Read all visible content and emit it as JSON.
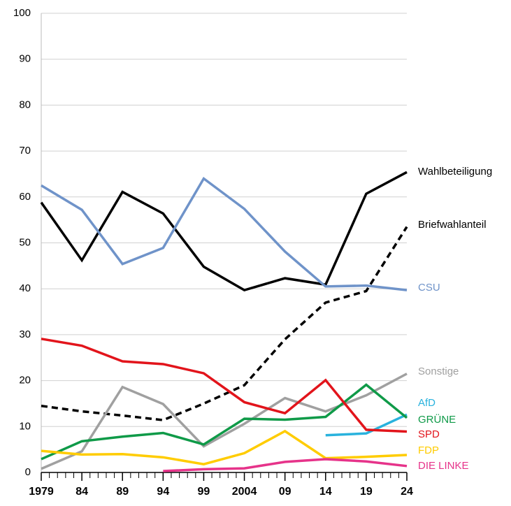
{
  "chart_data": {
    "type": "line",
    "x": [
      1979,
      1984,
      1989,
      1994,
      1999,
      2004,
      2009,
      2014,
      2019,
      2024
    ],
    "xlim": [
      1979,
      2024
    ],
    "xticks": [
      1979,
      {
        "value": 1984,
        "label": "84"
      },
      {
        "value": 1989,
        "label": "89"
      },
      {
        "value": 1994,
        "label": "94"
      },
      {
        "value": 1999,
        "label": "99"
      },
      2004,
      {
        "value": 2009,
        "label": "09"
      },
      {
        "value": 2014,
        "label": "14"
      },
      {
        "value": 2019,
        "label": "19"
      },
      {
        "value": 2024,
        "label": "24"
      }
    ],
    "minor_xticks": [
      1980,
      1981,
      1982,
      1983,
      1985,
      1986,
      1987,
      1988,
      1990,
      1991,
      1992,
      1993,
      1995,
      1996,
      1997,
      1998,
      2000,
      2001,
      2002,
      2003,
      2005,
      2006,
      2007,
      2008,
      2010,
      2011,
      2012,
      2013,
      2015,
      2016,
      2017,
      2018,
      2020,
      2021,
      2022,
      2023
    ],
    "ylim": [
      0,
      100
    ],
    "yticks": [
      0,
      10,
      20,
      30,
      40,
      50,
      60,
      70,
      80,
      90,
      100
    ],
    "grid": true,
    "series": [
      {
        "name": "Wahlbeteiligung",
        "color": "#000000",
        "values": [
          58.8,
          46.2,
          61.1,
          56.4,
          44.8,
          39.7,
          42.3,
          40.9,
          60.7,
          65.4
        ]
      },
      {
        "name": "Briefwahlanteil",
        "color": "#000000",
        "dashed": true,
        "values": [
          14.5,
          13.3,
          12.4,
          11.4,
          15.0,
          19.0,
          29.0,
          37.0,
          39.5,
          53.5
        ]
      },
      {
        "name": "CSU",
        "color": "#6f93c9",
        "values": [
          62.5,
          57.2,
          45.4,
          48.9,
          64.0,
          57.4,
          48.1,
          40.5,
          40.7,
          39.7
        ]
      },
      {
        "name": "Sonstige",
        "color": "#a0a0a0",
        "values": [
          0.8,
          4.6,
          18.6,
          14.9,
          5.7,
          10.6,
          16.2,
          13.3,
          16.8,
          21.5
        ]
      },
      {
        "name": "AfD",
        "color": "#29b2dd",
        "values": [
          null,
          null,
          null,
          null,
          null,
          null,
          null,
          8.1,
          8.5,
          12.6
        ]
      },
      {
        "name": "GRÜNE",
        "color": "#0f9a48",
        "values": [
          2.9,
          6.8,
          7.8,
          8.6,
          6.1,
          11.7,
          11.5,
          12.1,
          19.1,
          11.9
        ]
      },
      {
        "name": "SPD",
        "color": "#e2141b",
        "values": [
          29.1,
          27.6,
          24.2,
          23.6,
          21.6,
          15.3,
          12.9,
          20.1,
          9.3,
          8.9
        ]
      },
      {
        "name": "FDP",
        "color": "#ffcc00",
        "values": [
          4.7,
          3.9,
          4.0,
          3.3,
          1.8,
          4.2,
          9.0,
          3.1,
          3.4,
          3.8
        ]
      },
      {
        "name": "DIE LINKE",
        "color": "#e6338a",
        "values": [
          null,
          null,
          null,
          0.3,
          0.7,
          0.9,
          2.3,
          2.9,
          2.4,
          1.4
        ]
      }
    ]
  }
}
